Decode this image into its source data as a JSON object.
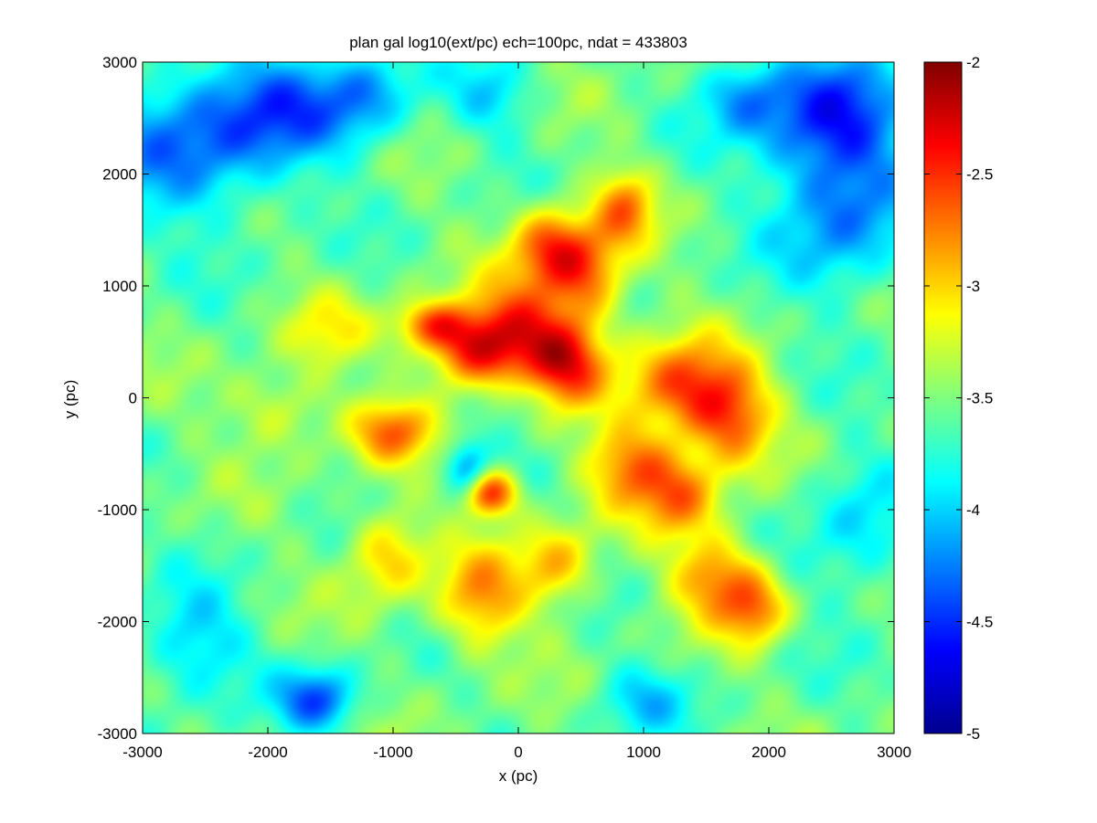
{
  "chart_data": {
    "type": "heatmap",
    "title": "plan gal log10(ext/pc) ech=100pc, ndat = 433803",
    "xlabel": "x (pc)",
    "ylabel": "y (pc)",
    "xlim": [
      -3000,
      3000
    ],
    "ylim": [
      -3000,
      3000
    ],
    "xticks": [
      -3000,
      -2000,
      -1000,
      0,
      1000,
      2000,
      3000
    ],
    "yticks": [
      -3000,
      -2000,
      -1000,
      0,
      1000,
      2000,
      3000
    ],
    "x_tick_labels": [
      "-3000",
      "-2000",
      "-1000",
      "0",
      "1000",
      "2000",
      "3000"
    ],
    "y_tick_labels": [
      "-3000",
      "-2000",
      "-1000",
      "0",
      "1000",
      "2000",
      "3000"
    ],
    "colormap": "jet",
    "clim": [
      -5,
      -2
    ],
    "colorbar": {
      "ticks": [
        -5,
        -4.5,
        -4,
        -3.5,
        -3,
        -2.5,
        -2
      ],
      "tick_labels": [
        "-5",
        "-4.5",
        "-4",
        "-3.5",
        "-3",
        "-2.5",
        "-2"
      ],
      "placement": "right"
    },
    "grid": false,
    "background_level": -3.55,
    "features": [
      {
        "x": 0,
        "y": 600,
        "sx": 320,
        "sy": 300,
        "level": -2.55
      },
      {
        "x": -400,
        "y": 400,
        "sx": 260,
        "sy": 230,
        "level": -2.7
      },
      {
        "x": -700,
        "y": 650,
        "sx": 200,
        "sy": 150,
        "level": -2.75
      },
      {
        "x": 250,
        "y": 1350,
        "sx": 220,
        "sy": 260,
        "level": -2.7
      },
      {
        "x": 550,
        "y": 1100,
        "sx": 220,
        "sy": 300,
        "level": -2.75
      },
      {
        "x": 850,
        "y": 1700,
        "sx": 170,
        "sy": 240,
        "level": -2.85
      },
      {
        "x": 400,
        "y": 300,
        "sx": 220,
        "sy": 260,
        "level": -2.65
      },
      {
        "x": 1300,
        "y": 100,
        "sx": 330,
        "sy": 300,
        "level": -2.6
      },
      {
        "x": 1700,
        "y": -200,
        "sx": 240,
        "sy": 300,
        "level": -2.75
      },
      {
        "x": 900,
        "y": -600,
        "sx": 260,
        "sy": 260,
        "level": -2.8
      },
      {
        "x": 1300,
        "y": -900,
        "sx": 230,
        "sy": 260,
        "level": -2.85
      },
      {
        "x": 1600,
        "y": -1600,
        "sx": 250,
        "sy": 260,
        "level": -2.75
      },
      {
        "x": 1900,
        "y": -1900,
        "sx": 180,
        "sy": 220,
        "level": -2.85
      },
      {
        "x": -250,
        "y": -850,
        "sx": 170,
        "sy": 150,
        "level": -2.3
      },
      {
        "x": -1000,
        "y": -300,
        "sx": 240,
        "sy": 200,
        "level": -2.8
      },
      {
        "x": -1050,
        "y": -1400,
        "sx": 220,
        "sy": 300,
        "level": -2.95
      },
      {
        "x": -300,
        "y": -1800,
        "sx": 240,
        "sy": 320,
        "level": -2.85
      },
      {
        "x": 300,
        "y": -1500,
        "sx": 220,
        "sy": 260,
        "level": -2.9
      },
      {
        "x": -1900,
        "y": -100,
        "sx": 280,
        "sy": 250,
        "level": -3.15
      },
      {
        "x": -1500,
        "y": 600,
        "sx": 250,
        "sy": 230,
        "level": -3.2
      },
      {
        "x": -2600,
        "y": 2300,
        "sx": 500,
        "sy": 500,
        "level": -4.3
      },
      {
        "x": -1800,
        "y": 2600,
        "sx": 400,
        "sy": 350,
        "level": -4.15
      },
      {
        "x": -1200,
        "y": 2700,
        "sx": 260,
        "sy": 300,
        "level": -4.05
      },
      {
        "x": 2500,
        "y": 2500,
        "sx": 420,
        "sy": 420,
        "level": -4.45
      },
      {
        "x": 2600,
        "y": 1600,
        "sx": 380,
        "sy": 480,
        "level": -4.2
      },
      {
        "x": 1800,
        "y": 2700,
        "sx": 250,
        "sy": 250,
        "level": -4.05
      },
      {
        "x": -400,
        "y": -700,
        "sx": 120,
        "sy": 220,
        "level": -4.3
      },
      {
        "x": -1600,
        "y": -2700,
        "sx": 220,
        "sy": 200,
        "level": -4.35
      },
      {
        "x": -2600,
        "y": -2200,
        "sx": 300,
        "sy": 350,
        "level": -4.05
      },
      {
        "x": -200,
        "y": 2700,
        "sx": 250,
        "sy": 250,
        "level": -3.95
      },
      {
        "x": 1000,
        "y": -2700,
        "sx": 260,
        "sy": 220,
        "level": -3.95
      },
      {
        "x": 2700,
        "y": -1200,
        "sx": 300,
        "sy": 500,
        "level": -3.95
      },
      {
        "x": 0,
        "y": 0,
        "sx": 160,
        "sy": 160,
        "level": -3.75
      }
    ]
  }
}
